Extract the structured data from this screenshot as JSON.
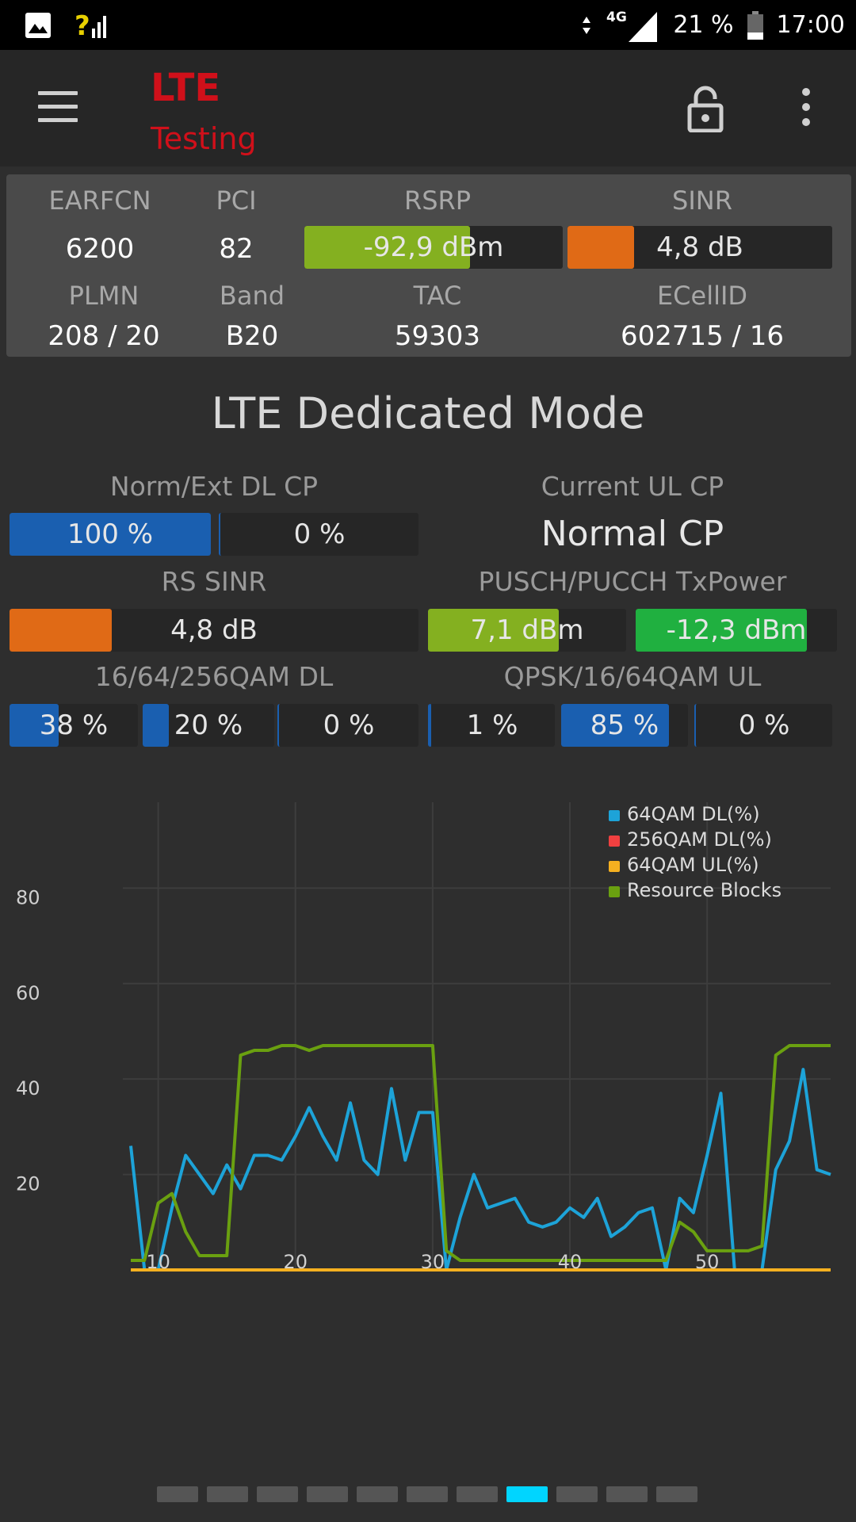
{
  "status_bar": {
    "network": "4G",
    "battery": "21 %",
    "time": "17:00"
  },
  "app_bar": {
    "title": "LTE",
    "subtitle": "Testing",
    "title_color": "#d0101a"
  },
  "cell_info": {
    "earfcn_label": "EARFCN",
    "earfcn": "6200",
    "pci_label": "PCI",
    "pci": "82",
    "rsrp_label": "RSRP",
    "rsrp": "-92,9 dBm",
    "rsrp_fill": 0.64,
    "sinr_label": "SINR",
    "sinr": "4,8 dB",
    "sinr_fill": 0.25,
    "plmn_label": "PLMN",
    "plmn": "208 / 20",
    "band_label": "Band",
    "band": "B20",
    "tac_label": "TAC",
    "tac": "59303",
    "ecellid_label": "ECellID",
    "ecellid": "602715 / 16"
  },
  "mode": {
    "title": "LTE Dedicated Mode",
    "dl_cp_label": "Norm/Ext DL CP",
    "dl_cp_norm": "100 %",
    "dl_cp_norm_fill": 1.0,
    "dl_cp_ext": "0 %",
    "dl_cp_ext_fill": 0.0,
    "ul_cp_label": "Current UL CP",
    "ul_cp_value": "Normal CP",
    "rs_sinr_label": "RS SINR",
    "rs_sinr": "4,8 dB",
    "rs_sinr_fill": 0.25,
    "txpower_label": "PUSCH/PUCCH TxPower",
    "pusch": "7,1 dBm",
    "pusch_fill": 0.66,
    "pucch": "-12,3 dBm",
    "pucch_fill": 0.85,
    "dl_qam_label": "16/64/256QAM DL",
    "dl_16qam": "38 %",
    "dl_16qam_fill": 0.38,
    "dl_64qam": "20 %",
    "dl_64qam_fill": 0.2,
    "dl_256qam": "0 %",
    "dl_256qam_fill": 0.0,
    "ul_qam_label": "QPSK/16/64QAM UL",
    "ul_qpsk": "1 %",
    "ul_qpsk_fill": 0.01,
    "ul_16qam": "85 %",
    "ul_16qam_fill": 0.85,
    "ul_64qam": "0 %",
    "ul_64qam_fill": 0.0
  },
  "colors": {
    "blue_fill": "#1a5fb0",
    "orange_fill": "#e06a16",
    "green_fill": "#84b020",
    "bright_green_fill": "#20b040",
    "active_page": "#00d5ff"
  },
  "chart_data": {
    "type": "line",
    "x": [
      8,
      9,
      10,
      11,
      12,
      13,
      14,
      15,
      16,
      17,
      18,
      19,
      20,
      21,
      22,
      23,
      24,
      25,
      26,
      27,
      28,
      29,
      30,
      31,
      32,
      33,
      34,
      35,
      36,
      37,
      38,
      39,
      40,
      41,
      42,
      43,
      44,
      45,
      46,
      47,
      48,
      49,
      50,
      51,
      52,
      53,
      54,
      55,
      56,
      57,
      58,
      59
    ],
    "xlim": [
      8,
      59
    ],
    "ylim": [
      0,
      98
    ],
    "yticks": [
      20,
      40,
      60,
      80
    ],
    "xticks": [
      10,
      20,
      30,
      40,
      50
    ],
    "grid": true,
    "legend_position": "top-right",
    "series": [
      {
        "name": "64QAM DL(%)",
        "color": "#1da3d8",
        "values": [
          26,
          0,
          0,
          13,
          24,
          20,
          16,
          22,
          17,
          24,
          24,
          23,
          28,
          34,
          28,
          23,
          35,
          23,
          20,
          38,
          23,
          33,
          33,
          0,
          11,
          20,
          13,
          14,
          15,
          10,
          9,
          10,
          13,
          11,
          15,
          7,
          9,
          12,
          13,
          0,
          15,
          12,
          24,
          37,
          0,
          0,
          0,
          21,
          27,
          42,
          21,
          20
        ]
      },
      {
        "name": "256QAM DL(%)",
        "color": "#f04040",
        "values": [
          0,
          0,
          0,
          0,
          0,
          0,
          0,
          0,
          0,
          0,
          0,
          0,
          0,
          0,
          0,
          0,
          0,
          0,
          0,
          0,
          0,
          0,
          0,
          0,
          0,
          0,
          0,
          0,
          0,
          0,
          0,
          0,
          0,
          0,
          0,
          0,
          0,
          0,
          0,
          0,
          0,
          0,
          0,
          0,
          0,
          0,
          0,
          0,
          0,
          0,
          0,
          0
        ]
      },
      {
        "name": "64QAM UL(%)",
        "color": "#f5b020",
        "values": [
          0,
          0,
          0,
          0,
          0,
          0,
          0,
          0,
          0,
          0,
          0,
          0,
          0,
          0,
          0,
          0,
          0,
          0,
          0,
          0,
          0,
          0,
          0,
          0,
          0,
          0,
          0,
          0,
          0,
          0,
          0,
          0,
          0,
          0,
          0,
          0,
          0,
          0,
          0,
          0,
          0,
          0,
          0,
          0,
          0,
          0,
          0,
          0,
          0,
          0,
          0,
          0
        ]
      },
      {
        "name": "Resource Blocks",
        "color": "#6aa010",
        "values": [
          2,
          2,
          14,
          16,
          8,
          3,
          3,
          3,
          45,
          46,
          46,
          47,
          47,
          46,
          47,
          47,
          47,
          47,
          47,
          47,
          47,
          47,
          47,
          4,
          2,
          2,
          2,
          2,
          2,
          2,
          2,
          2,
          2,
          2,
          2,
          2,
          2,
          2,
          2,
          2,
          10,
          8,
          4,
          4,
          4,
          4,
          5,
          45,
          47,
          47,
          47,
          47
        ]
      }
    ]
  }
}
